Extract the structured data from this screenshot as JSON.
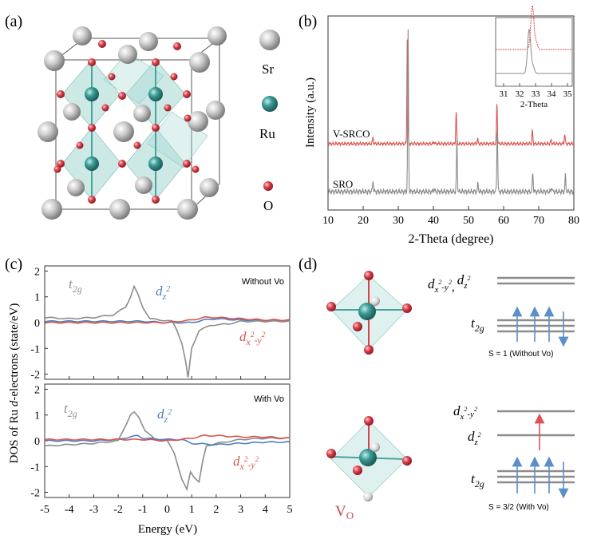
{
  "panels": {
    "a": {
      "label": "(a)",
      "legend": [
        {
          "name": "Sr",
          "color": "#bdbdbd"
        },
        {
          "name": "Ru",
          "color": "#2f8f8a"
        },
        {
          "name": "O",
          "color": "#d6404a"
        }
      ]
    },
    "b": {
      "label": "(b)",
      "curve_labels": [
        "V-SRCO",
        "SRO"
      ],
      "inset_xlabel": "2-Theta",
      "inset_ticks": [
        "31",
        "32",
        "33",
        "34",
        "35"
      ]
    },
    "c": {
      "label": "(c)",
      "top_title": "Without Vo",
      "bottom_title": "With Vo",
      "series_labels": {
        "t2g_main": "t",
        "t2g_sub": "2g",
        "dz_main": "d",
        "dz_sub": "z",
        "dz_sup": "2",
        "dx_main": "d",
        "dx_sub": "x",
        "dx_sup1": "2",
        "dx_mid": "-y",
        "dx_sup2": "2"
      }
    },
    "d": {
      "label": "(d)",
      "vo_label_main": "V",
      "vo_label_sub": "O",
      "top_levels_label_1": "d",
      "top_levels_label_sub1": "x",
      "top_levels_label_sup1": "2",
      "top_levels_label_mid1": "-y",
      "top_levels_label_sup2": "2",
      "top_levels_label_comma": ",",
      "top_levels_label_2": "d",
      "top_levels_label_sub2": "z",
      "top_levels_label_sup3": "2",
      "t2g_main": "t",
      "t2g_sub": "2g",
      "spin_top": "S = 1 (Without Vo)",
      "spin_bottom": "S = 3/2 (With Vo)"
    }
  },
  "chart_data": [
    {
      "type": "line",
      "panel": "b",
      "xlabel": "2-Theta (degree)",
      "ylabel": "Intensity (a.u.)",
      "xlim": [
        10,
        80
      ],
      "xticks": [
        "10",
        "20",
        "30",
        "40",
        "50",
        "60",
        "70",
        "80"
      ],
      "series": [
        {
          "name": "V-SRCO",
          "color": "#d9544d",
          "peaks": [
            [
              22.8,
              0.06
            ],
            [
              32.6,
              1.0
            ],
            [
              40.2,
              0.02
            ],
            [
              46.5,
              0.29
            ],
            [
              52.6,
              0.04
            ],
            [
              58.1,
              0.36
            ],
            [
              68.2,
              0.12
            ],
            [
              73.5,
              0.03
            ],
            [
              77.4,
              0.09
            ]
          ]
        },
        {
          "name": "SRO",
          "color": "#8a8a8a",
          "peaks": [
            [
              22.8,
              0.07
            ],
            [
              32.8,
              1.0
            ],
            [
              40.2,
              0.02
            ],
            [
              46.7,
              0.32
            ],
            [
              52.7,
              0.05
            ],
            [
              58.2,
              0.4
            ],
            [
              68.3,
              0.12
            ],
            [
              73.7,
              0.03
            ],
            [
              77.6,
              0.1
            ]
          ]
        }
      ]
    },
    {
      "type": "line",
      "panel": "c",
      "xlabel": "Energy (eV)",
      "ylabel": "DOS of Ru d-electrons (state/eV)",
      "ylabel_pre": "DOS of Ru ",
      "ylabel_italic": "d",
      "ylabel_post": "-electrons (state/eV)",
      "xlim": [
        -5,
        5
      ],
      "ylim": [
        -2.2,
        2.2
      ],
      "xticks": [
        "-5",
        "-4",
        "-3",
        "-2",
        "-1",
        "0",
        "1",
        "2",
        "3",
        "4",
        "5"
      ],
      "yticks": [
        "2",
        "1",
        "0",
        "-1",
        "-2"
      ],
      "subplots": [
        {
          "title": "Without Vo",
          "series": [
            {
              "name": "t2g",
              "color": "#8c8c8c",
              "x": [
                -5,
                -4,
                -3,
                -2.2,
                -1.7,
                -1.5,
                -1.35,
                -1.2,
                -1.0,
                -0.7,
                -0.3,
                0,
                0.2,
                0.4,
                0.6,
                0.75,
                0.85,
                1.0,
                1.3,
                1.8,
                2.5,
                3,
                4,
                5
              ],
              "y": [
                0.2,
                0.15,
                0.2,
                0.3,
                0.6,
                1.0,
                1.4,
                1.1,
                0.6,
                0.15,
                0.1,
                0.08,
                0.05,
                -0.3,
                -0.8,
                -1.5,
                -2.15,
                -1.0,
                -0.3,
                -0.1,
                -0.05,
                0.05,
                0.05,
                0.05
              ]
            },
            {
              "name": "dz2",
              "color": "#4a7fc1",
              "x": [
                -5,
                -3,
                -1.5,
                -1,
                0,
                1,
                1.5,
                2,
                3,
                4,
                5
              ],
              "y": [
                0.05,
                0.05,
                0.05,
                0.05,
                0.0,
                0.0,
                0.1,
                0.15,
                0.1,
                0.1,
                0.1
              ]
            },
            {
              "name": "dx2-y2",
              "color": "#d9544d",
              "x": [
                -5,
                -3,
                -1.5,
                -1,
                0,
                1,
                1.5,
                2,
                3,
                4,
                5
              ],
              "y": [
                0.0,
                0.0,
                0.0,
                0.0,
                0.0,
                0.1,
                0.2,
                0.2,
                0.15,
                0.1,
                0.1
              ]
            }
          ]
        },
        {
          "title": "With Vo",
          "series": [
            {
              "name": "t2g",
              "color": "#8c8c8c",
              "x": [
                -5,
                -4,
                -3,
                -2,
                -1.7,
                -1.5,
                -1.35,
                -1.15,
                -0.9,
                -0.5,
                0,
                0.3,
                0.6,
                0.8,
                0.95,
                1.1,
                1.3,
                1.45,
                1.6,
                2,
                3,
                4,
                5
              ],
              "y": [
                -0.2,
                -0.15,
                -0.1,
                0.0,
                0.6,
                1.0,
                1.1,
                0.9,
                0.4,
                0.05,
                0.0,
                -0.5,
                -1.5,
                -1.9,
                -1.2,
                -1.4,
                -1.6,
                -0.8,
                -0.2,
                -0.1,
                0.05,
                0.1,
                0.1
              ]
            },
            {
              "name": "dz2",
              "color": "#4a7fc1",
              "x": [
                -5,
                -3,
                -2,
                -1.5,
                -1.2,
                -1,
                0,
                0.6,
                1,
                2,
                3,
                4,
                5
              ],
              "y": [
                0.0,
                0.0,
                0.05,
                0.15,
                0.2,
                0.1,
                0.05,
                0.05,
                -0.1,
                -0.15,
                -0.1,
                -0.05,
                -0.05
              ]
            },
            {
              "name": "dx2-y2",
              "color": "#d9544d",
              "x": [
                -5,
                -3,
                -2,
                -1,
                0,
                1,
                1.5,
                2,
                3,
                4,
                5
              ],
              "y": [
                0.05,
                0.05,
                0.05,
                0.05,
                0.0,
                0.1,
                0.2,
                0.2,
                0.15,
                0.15,
                0.1
              ]
            }
          ]
        }
      ]
    }
  ]
}
